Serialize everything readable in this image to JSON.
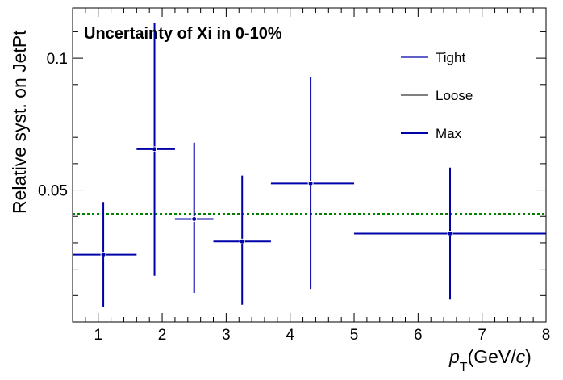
{
  "chart_data": {
    "type": "scatter",
    "title": "Uncertainty of Xi in 0-10%",
    "xlabel": {
      "p": "p",
      "sub": "T",
      "unit_open": "(GeV/",
      "c": "c",
      "unit_close": ")"
    },
    "ylabel": "Relative syst. on JetPt",
    "xlim": [
      0.6,
      8.0
    ],
    "ylim": [
      0.0,
      0.119
    ],
    "x_ticks": [
      1,
      2,
      3,
      4,
      5,
      6,
      7,
      8
    ],
    "x_tick_labels": [
      "1",
      "2",
      "3",
      "4",
      "5",
      "6",
      "7",
      "8"
    ],
    "y_ticks": [
      0.05,
      0.1
    ],
    "y_tick_labels": [
      "0.05",
      "0.1"
    ],
    "reference_line": {
      "y": 0.041,
      "style": "dotted",
      "color": "#008000"
    },
    "legend": {
      "position": "top-right",
      "entries": [
        {
          "name": "Tight",
          "color": "#0000aa"
        },
        {
          "name": "Loose",
          "color": "#000000"
        },
        {
          "name": "Max",
          "color": "#0000aa"
        }
      ]
    },
    "series": [
      {
        "name": "Max",
        "color": "#0000aa",
        "points": [
          {
            "x": 1.08,
            "xlo": 0.6,
            "xhi": 1.6,
            "y": 0.0255,
            "ylo": 0.0055,
            "yhi": 0.0455
          },
          {
            "x": 1.88,
            "xlo": 1.6,
            "xhi": 2.2,
            "y": 0.0655,
            "ylo": 0.0175,
            "yhi": 0.1135
          },
          {
            "x": 2.5,
            "xlo": 2.2,
            "xhi": 2.8,
            "y": 0.039,
            "ylo": 0.011,
            "yhi": 0.068
          },
          {
            "x": 3.25,
            "xlo": 2.8,
            "xhi": 3.7,
            "y": 0.0305,
            "ylo": 0.0065,
            "yhi": 0.0555
          },
          {
            "x": 4.32,
            "xlo": 3.7,
            "xhi": 5.0,
            "y": 0.0525,
            "ylo": 0.0125,
            "yhi": 0.093
          },
          {
            "x": 6.5,
            "xlo": 5.0,
            "xhi": 8.0,
            "y": 0.0335,
            "ylo": 0.0085,
            "yhi": 0.0585
          }
        ]
      }
    ]
  }
}
